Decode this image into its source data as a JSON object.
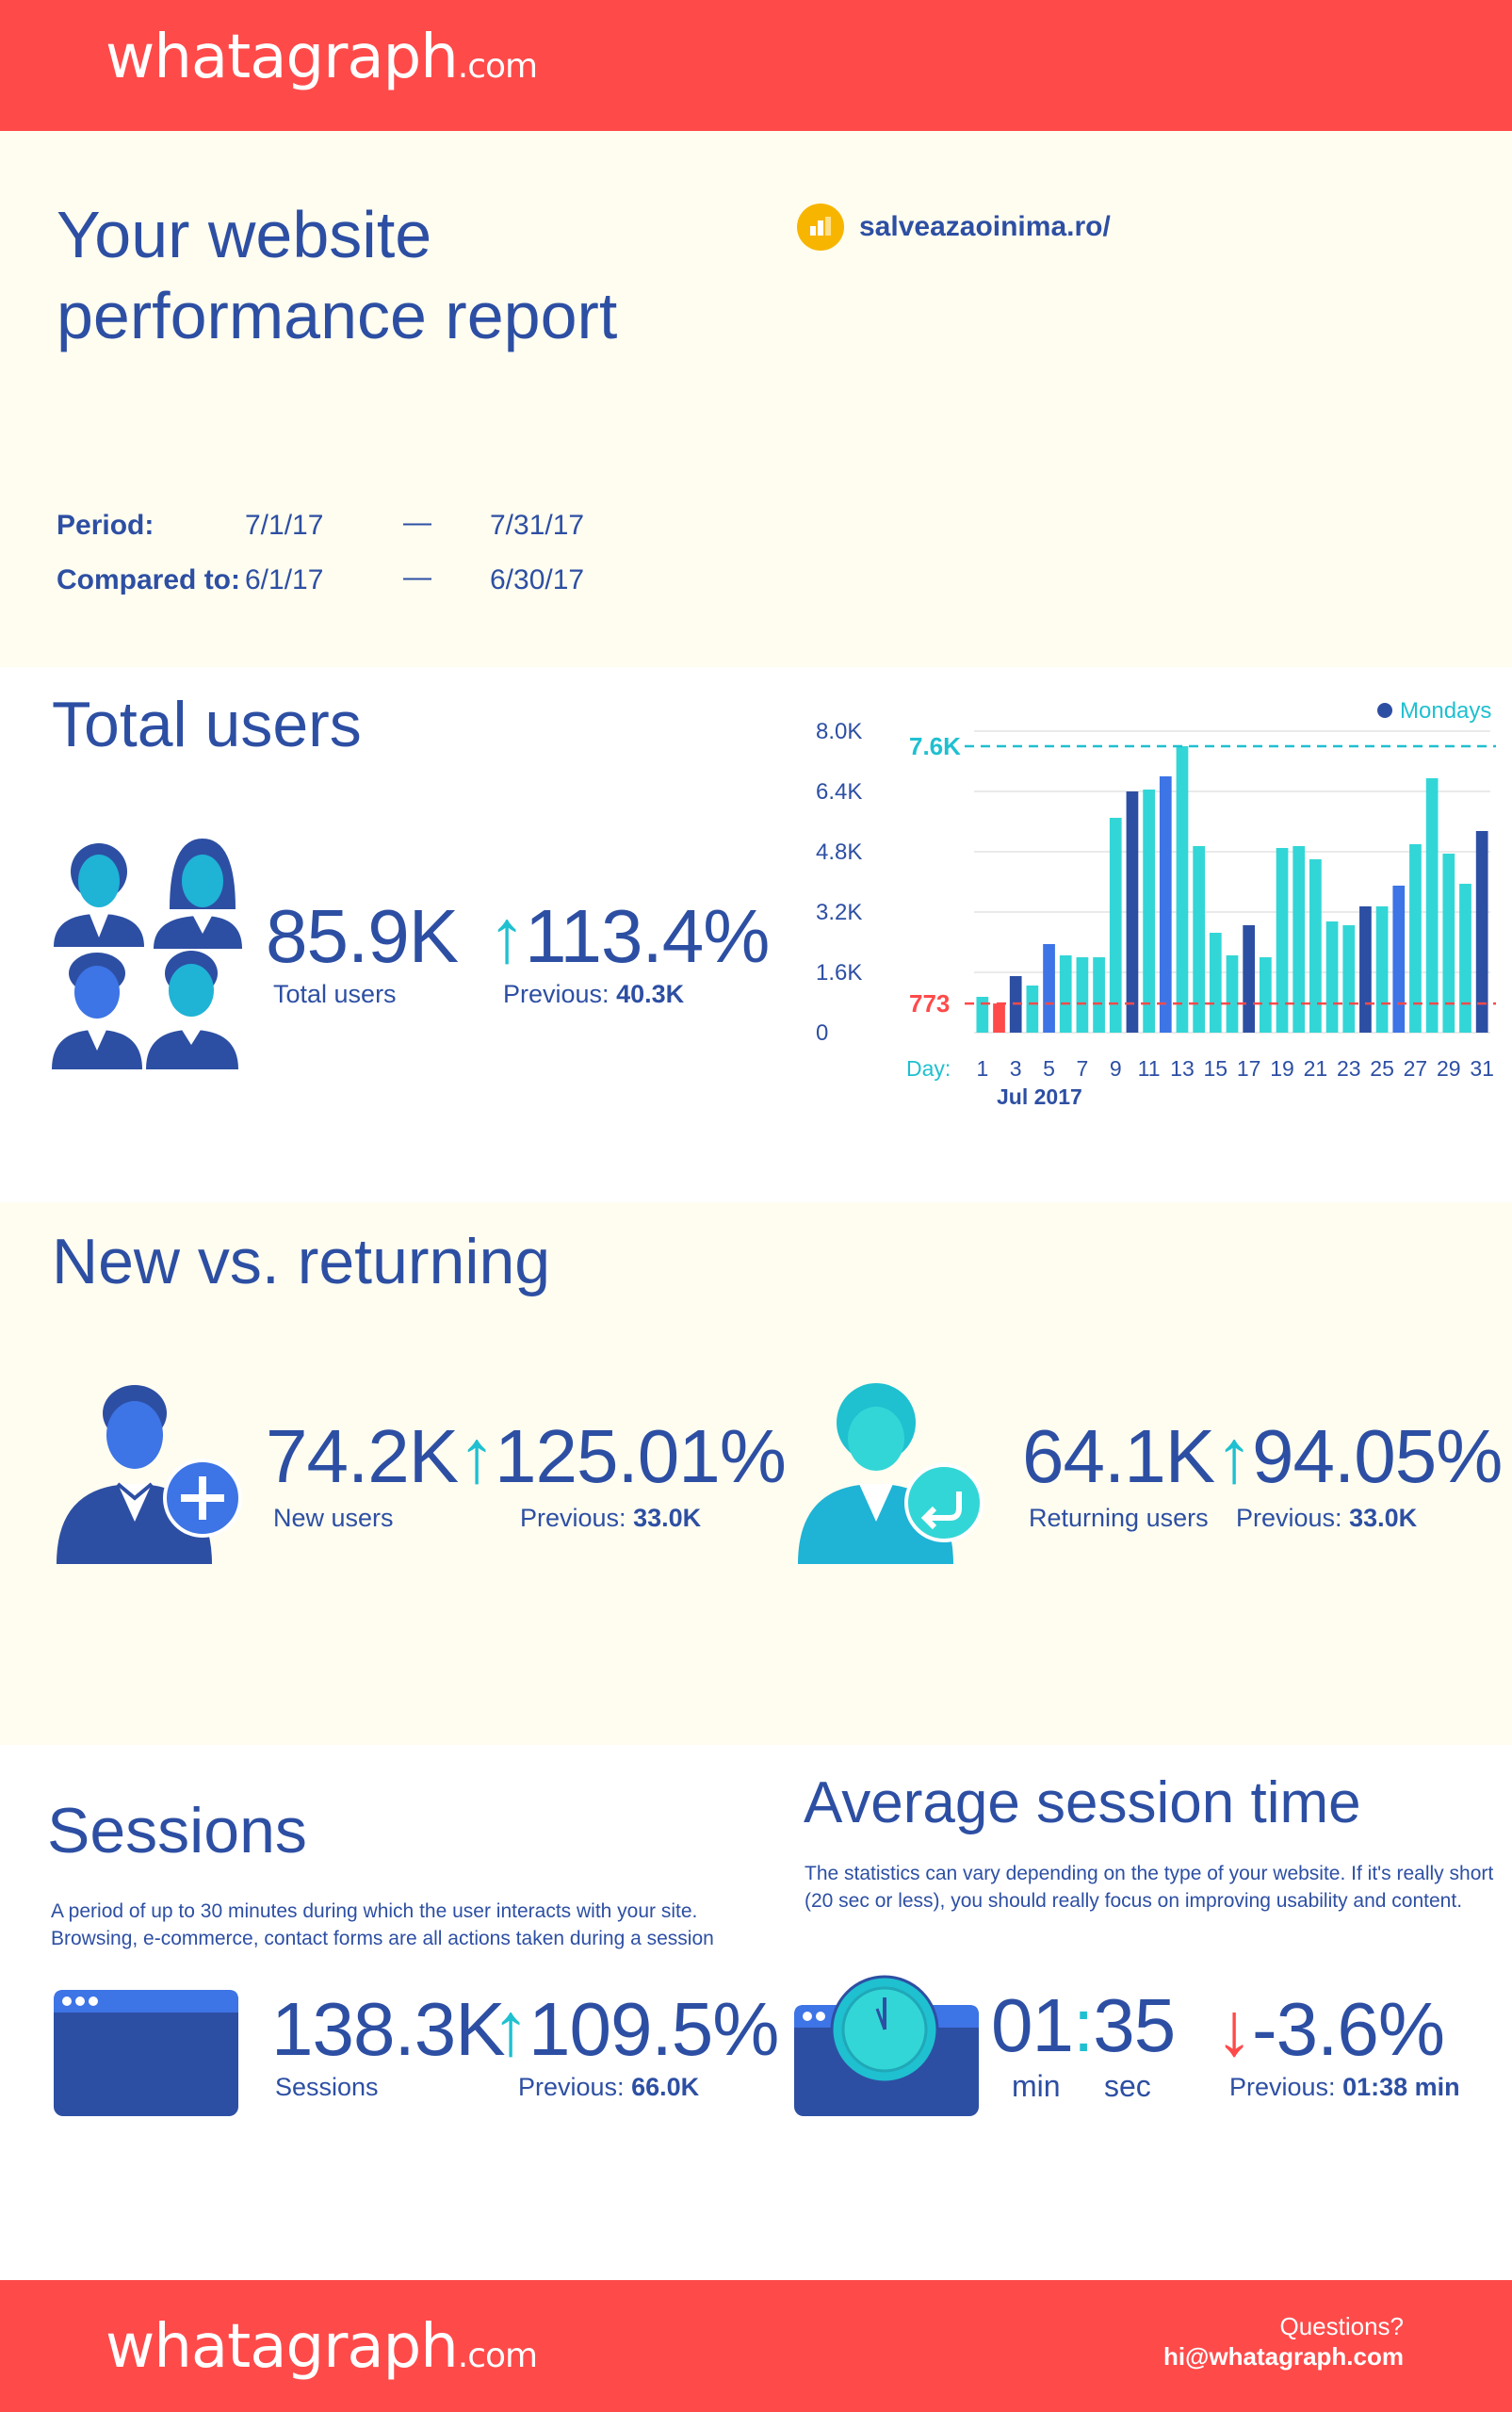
{
  "header": {
    "logo_main": "whatagraph",
    "logo_suffix": ".com"
  },
  "report": {
    "title_line1": "Your website",
    "title_line2": "performance report",
    "site": "salveazaoinima.ro/",
    "period_label": "Period:",
    "period_start": "7/1/17",
    "period_end": "7/31/17",
    "compared_label": "Compared to:",
    "compared_start": "6/1/17",
    "compared_end": "6/30/17",
    "dash": "—"
  },
  "total_users": {
    "title": "Total users",
    "value": "85.9K",
    "label": "Total users",
    "change": "113.4%",
    "prev_label": "Previous:",
    "prev_value": "40.3K"
  },
  "chart_data": {
    "type": "bar",
    "legend": "Mondays",
    "legend_position": "top-right",
    "xlabel_prefix": "Day:",
    "xsublabel": "Jul 2017",
    "x_tick_labels": [
      "1",
      "3",
      "5",
      "7",
      "9",
      "11",
      "13",
      "15",
      "17",
      "19",
      "21",
      "23",
      "25",
      "27",
      "29",
      "31"
    ],
    "y_tick_labels": [
      "0",
      "1.6K",
      "3.2K",
      "4.8K",
      "6.4K",
      "8.0K"
    ],
    "ylim": [
      0,
      8000
    ],
    "max_label": "7.6K",
    "min_label": "773",
    "max_value": 7600,
    "min_value": 773,
    "days": [
      1,
      2,
      3,
      4,
      5,
      6,
      7,
      8,
      9,
      10,
      11,
      12,
      13,
      14,
      15,
      16,
      17,
      18,
      19,
      20,
      21,
      22,
      23,
      24,
      25,
      26,
      27,
      28,
      29,
      30,
      31
    ],
    "values": [
      950,
      773,
      1500,
      1250,
      2350,
      2050,
      2000,
      2000,
      5700,
      6400,
      6450,
      6800,
      7600,
      4950,
      2650,
      2050,
      2850,
      2000,
      4900,
      4950,
      4600,
      2950,
      2850,
      3350,
      3350,
      3900,
      5000,
      6750,
      4750,
      3950,
      5350
    ],
    "mondays": [
      3,
      10,
      17,
      24,
      31
    ],
    "colors": {
      "monday": "#2d4fa3",
      "weekday": "#33d6d6",
      "alt": "#3d74e6",
      "min": "#ff4a4a",
      "max_line": "#1fc0d0",
      "min_line": "#ff4a4a"
    }
  },
  "new_vs_returning": {
    "title": "New vs. returning",
    "new_value": "74.2K",
    "new_label": "New users",
    "new_change": "125.01%",
    "new_prev_label": "Previous:",
    "new_prev_value": "33.0K",
    "ret_value": "64.1K",
    "ret_label": "Returning users",
    "ret_change": "94.05%",
    "ret_prev_label": "Previous:",
    "ret_prev_value": "33.0K"
  },
  "sessions": {
    "title": "Sessions",
    "desc_line1": "A period of up to 30 minutes during which the user interacts with your site.",
    "desc_line2": "Browsing, e-commerce, contact forms are all actions taken during a session",
    "value": "138.3K",
    "label": "Sessions",
    "change": "109.5%",
    "prev_label": "Previous:",
    "prev_value": "66.0K"
  },
  "avg_session": {
    "title": "Average session time",
    "desc_line1": "The statistics can vary depending on the type of your website. If it's really short",
    "desc_line2": "(20 sec or less), you should really focus on improving usability and content.",
    "minutes": "01",
    "seconds": "35",
    "colon": ":",
    "min_label": "min",
    "sec_label": "sec",
    "change": "-3.6%",
    "prev_label": "Previous:",
    "prev_value": "01:38 min"
  },
  "footer": {
    "logo_main": "whatagraph",
    "logo_suffix": ".com",
    "questions": "Questions?",
    "email": "hi@whatagraph.com"
  }
}
